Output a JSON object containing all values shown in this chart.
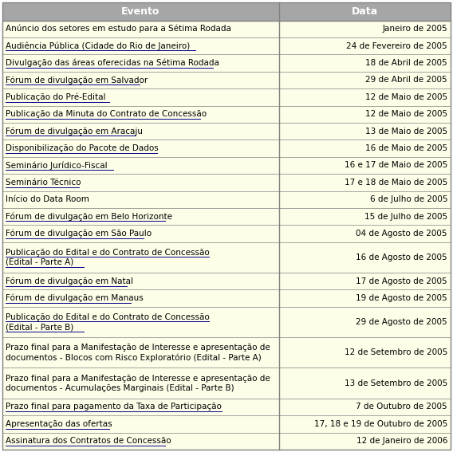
{
  "header": [
    "Evento",
    "Data"
  ],
  "rows": [
    [
      "Anúncio dos setores em estudo para a Sétima Rodada",
      "Janeiro de 2005",
      false
    ],
    [
      "Audiência Pública (Cidade do Rio de Janeiro)",
      "24 de Fevereiro de 2005",
      true
    ],
    [
      "Divulgação das áreas oferecidas na Sétima Rodada",
      "18 de Abril de 2005",
      true
    ],
    [
      "Fórum de divulgação em Salvador",
      "29 de Abril de 2005",
      true
    ],
    [
      "Publicação do Pré-Edital",
      "12 de Maio de 2005",
      true
    ],
    [
      "Publicação da Minuta do Contrato de Concessão",
      "12 de Maio de 2005",
      true
    ],
    [
      "Fórum de divulgação em Aracaju",
      "13 de Maio de 2005",
      true
    ],
    [
      "Disponibilização do Pacote de Dados",
      "16 de Maio de 2005",
      true
    ],
    [
      "Seminário Jurídico-Fiscal",
      "16 e 17 de Maio de 2005",
      true
    ],
    [
      "Seminário Técnico",
      "17 e 18 de Maio de 2005",
      true
    ],
    [
      "Início do Data Room",
      "6 de Julho de 2005",
      false
    ],
    [
      "Fórum de divulgação em Belo Horizonte",
      "15 de Julho de 2005",
      true
    ],
    [
      "Fórum de divulgação em São Paulo",
      "04 de Agosto de 2005",
      true
    ],
    [
      "Publicação do Edital e do Contrato de Concessão\n(Edital - Parte A)",
      "16 de Agosto de 2005",
      true
    ],
    [
      "Fórum de divulgação em Natal",
      "17 de Agosto de 2005",
      true
    ],
    [
      "Fórum de divulgação em Manaus",
      "19 de Agosto de 2005",
      true
    ],
    [
      "Publicação do Edital e do Contrato de Concessão\n(Edital - Parte B)",
      "29 de Agosto de 2005",
      true
    ],
    [
      "Prazo final para a Manifestação de Interesse e apresentação de\ndocumentos - Blocos com Risco Exploratório (Edital - Parte A)",
      "12 de Setembro de 2005",
      false
    ],
    [
      "Prazo final para a Manifestação de Interesse e apresentação de\ndocumentos - Acumulações Marginais (Edital - Parte B)",
      "13 de Setembro de 2005",
      false
    ],
    [
      "Prazo final para pagamento da Taxa de Participação",
      "7 de Outubro de 2005",
      true
    ],
    [
      "Apresentação das ofertas",
      "17, 18 e 19 de Outubro de 2005",
      true
    ],
    [
      "Assinatura dos Contratos de Concessão",
      "12 de Janeiro de 2006",
      true
    ]
  ],
  "header_bg": "#a6a6a6",
  "header_fg": "#ffffff",
  "row_bg_light": "#fdfde8",
  "row_bg_white": "#ffffff",
  "border_color": "#808080",
  "underline_color": "#00008b",
  "col_split": 0.617,
  "fig_width": 5.68,
  "fig_height": 5.67,
  "font_size": 7.5,
  "header_font_size": 9.0,
  "dpi": 100
}
